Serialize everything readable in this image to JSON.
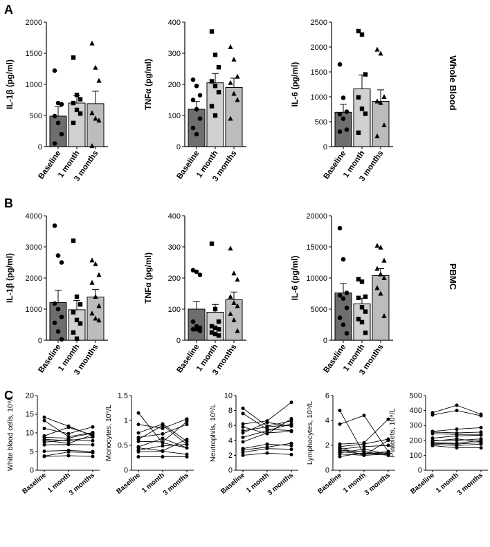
{
  "panels": {
    "a": "A",
    "b": "B",
    "c": "C"
  },
  "side_labels": {
    "whole_blood": "Whole Blood",
    "pbmc": "PBMC"
  },
  "chart_data": [
    {
      "id": "a1",
      "type": "bar",
      "panel": "A",
      "categories": [
        "Baseline",
        "1 month",
        "3 months"
      ],
      "ylabel": "IL-1β (pg/ml)",
      "ylim": [
        0,
        2000
      ],
      "yticks": [
        0,
        500,
        1000,
        1500,
        2000
      ],
      "values": [
        490,
        700,
        690
      ],
      "sem": [
        150,
        120,
        200
      ],
      "points": [
        [
          1220,
          700,
          680,
          490,
          380,
          200,
          50
        ],
        [
          1430,
          830,
          760,
          700,
          590,
          530,
          380
        ],
        [
          1660,
          1270,
          1060,
          540,
          450,
          420,
          10
        ]
      ]
    },
    {
      "id": "a2",
      "type": "bar",
      "panel": "A",
      "categories": [
        "Baseline",
        "1 month",
        "3 months"
      ],
      "ylabel": "TNFα (pg/ml)",
      "ylim": [
        0,
        400
      ],
      "yticks": [
        0,
        100,
        200,
        300,
        400
      ],
      "values": [
        120,
        205,
        190
      ],
      "sem": [
        25,
        30,
        30
      ],
      "points": [
        [
          215,
          195,
          165,
          150,
          120,
          90,
          60,
          40
        ],
        [
          370,
          295,
          255,
          210,
          195,
          175,
          130,
          100
        ],
        [
          320,
          280,
          225,
          205,
          170,
          150,
          90
        ]
      ]
    },
    {
      "id": "a3",
      "type": "bar",
      "panel": "A",
      "categories": [
        "Baseline",
        "1 month",
        "3 months"
      ],
      "ylabel": "IL-6 (pg/ml)",
      "ylim": [
        0,
        2500
      ],
      "yticks": [
        0,
        500,
        1000,
        1500,
        2000,
        2500
      ],
      "values": [
        690,
        1160,
        910
      ],
      "sem": [
        160,
        280,
        230
      ],
      "points": [
        [
          1650,
          980,
          700,
          650,
          560,
          340,
          300
        ],
        [
          2320,
          2250,
          1450,
          990,
          760,
          660,
          280
        ],
        [
          1950,
          1870,
          1000,
          910,
          880,
          430,
          210
        ]
      ]
    },
    {
      "id": "b1",
      "type": "bar",
      "panel": "B",
      "categories": [
        "Baseline",
        "1 month",
        "3 months"
      ],
      "ylabel": "IL-1β (pg/ml)",
      "ylim": [
        0,
        4000
      ],
      "yticks": [
        0,
        1000,
        2000,
        3000,
        4000
      ],
      "values": [
        1210,
        980,
        1390
      ],
      "sem": [
        390,
        300,
        240
      ],
      "points": [
        [
          3680,
          2720,
          2500,
          1180,
          1000,
          750,
          560,
          280,
          30
        ],
        [
          3200,
          1400,
          1150,
          900,
          650,
          540,
          250,
          50
        ],
        [
          2570,
          2450,
          2100,
          1850,
          1400,
          1100,
          860,
          700,
          640
        ]
      ]
    },
    {
      "id": "b2",
      "type": "bar",
      "panel": "B",
      "categories": [
        "Baseline",
        "1 month",
        "3 months"
      ],
      "ylabel": "TNFα (pg/ml)",
      "ylim": [
        0,
        400
      ],
      "yticks": [
        0,
        100,
        200,
        300,
        400
      ],
      "values": [
        100,
        90,
        130
      ],
      "sem": [
        25,
        25,
        25
      ],
      "points": [
        [
          225,
          220,
          210,
          60,
          45,
          40,
          35,
          35,
          30
        ],
        [
          310,
          100,
          60,
          45,
          40,
          35,
          25,
          20,
          15
        ],
        [
          295,
          215,
          195,
          140,
          120,
          110,
          85,
          65,
          30
        ]
      ]
    },
    {
      "id": "b3",
      "type": "bar",
      "panel": "B",
      "categories": [
        "Baseline",
        "1 month",
        "3 months"
      ],
      "ylabel": "IL-6 (pg/ml)",
      "ylim": [
        0,
        20000
      ],
      "yticks": [
        0,
        5000,
        10000,
        15000,
        20000
      ],
      "values": [
        7600,
        5850,
        10400
      ],
      "sem": [
        1500,
        900,
        1100
      ],
      "points": [
        [
          18000,
          13000,
          7600,
          7200,
          6700,
          5200,
          3600,
          2500,
          1100
        ],
        [
          9800,
          9400,
          7000,
          6800,
          5300,
          4600,
          3400,
          2900,
          1200
        ],
        [
          15200,
          14900,
          12800,
          11500,
          10600,
          10000,
          8400,
          7500,
          3900
        ]
      ]
    },
    {
      "id": "c1",
      "type": "line",
      "panel": "C",
      "x": [
        "Baseline",
        "1 month",
        "3 months"
      ],
      "ylabel": "White blood cells, 10⁹/L",
      "ylim": [
        0,
        20
      ],
      "yticks": [
        0,
        5,
        10,
        15,
        20
      ],
      "series": [
        [
          14.2,
          11.8,
          9.2
        ],
        [
          13.3,
          9.0,
          10.1
        ],
        [
          11.2,
          9.8,
          11.6
        ],
        [
          9.2,
          11.5,
          9.4
        ],
        [
          8.8,
          8.6,
          10.0
        ],
        [
          8.3,
          7.9,
          8.9
        ],
        [
          8.0,
          7.2,
          9.5
        ],
        [
          7.5,
          8.2,
          7.9
        ],
        [
          6.8,
          6.9,
          6.8
        ],
        [
          5.1,
          5.3,
          5.0
        ],
        [
          3.8,
          4.9,
          4.7
        ],
        [
          3.7,
          3.9,
          3.7
        ]
      ]
    },
    {
      "id": "c2",
      "type": "line",
      "panel": "C",
      "x": [
        "Baseline",
        "1 month",
        "3 months"
      ],
      "ylabel": "Monocytes, 10⁹/L",
      "ylim": [
        0,
        1.5
      ],
      "yticks": [
        0,
        0.5,
        1.0,
        1.5
      ],
      "series": [
        [
          1.15,
          0.55,
          0.45
        ],
        [
          0.92,
          0.84,
          1.03
        ],
        [
          0.75,
          0.93,
          0.58
        ],
        [
          0.66,
          0.73,
          0.92
        ],
        [
          0.62,
          0.9,
          0.52
        ],
        [
          0.58,
          0.57,
          0.98
        ],
        [
          0.47,
          0.64,
          0.45
        ],
        [
          0.45,
          0.39,
          0.62
        ],
        [
          0.4,
          0.49,
          0.52
        ],
        [
          0.37,
          0.38,
          0.32
        ],
        [
          0.27,
          0.27,
          0.27
        ]
      ]
    },
    {
      "id": "c3",
      "type": "line",
      "panel": "C",
      "x": [
        "Baseline",
        "1 month",
        "3 months"
      ],
      "ylabel": "Neutrophils, 10⁹/L",
      "ylim": [
        0,
        10
      ],
      "yticks": [
        0,
        2,
        4,
        6,
        8,
        10
      ],
      "series": [
        [
          8.3,
          5.9,
          6.6
        ],
        [
          7.6,
          5.5,
          5.3
        ],
        [
          6.2,
          6.6,
          9.1
        ],
        [
          5.8,
          4.9,
          6.9
        ],
        [
          5.3,
          5.8,
          6.1
        ],
        [
          5.0,
          6.4,
          5.9
        ],
        [
          4.4,
          5.3,
          6.2
        ],
        [
          3.8,
          5.0,
          5.2
        ],
        [
          2.9,
          3.5,
          3.3
        ],
        [
          2.7,
          3.1,
          3.6
        ],
        [
          2.4,
          2.9,
          2.8
        ],
        [
          2.0,
          2.3,
          2.1
        ]
      ]
    },
    {
      "id": "c4",
      "type": "line",
      "panel": "C",
      "x": [
        "Baseline",
        "1 month",
        "3 months"
      ],
      "ylabel": "Lymphocytes, 10⁹/L",
      "ylim": [
        0,
        6
      ],
      "yticks": [
        0,
        2,
        4,
        6
      ],
      "series": [
        [
          4.8,
          1.3,
          1.4
        ],
        [
          3.7,
          4.4,
          1.5
        ],
        [
          2.1,
          2.2,
          4.1
        ],
        [
          1.9,
          2.1,
          2.5
        ],
        [
          1.8,
          1.2,
          2.4
        ],
        [
          1.7,
          1.9,
          2.0
        ],
        [
          1.6,
          1.5,
          1.2
        ],
        [
          1.5,
          1.3,
          1.5
        ],
        [
          1.4,
          1.7,
          1.3
        ],
        [
          1.3,
          1.2,
          1.3
        ],
        [
          1.1,
          1.4,
          1.2
        ]
      ]
    },
    {
      "id": "c5",
      "type": "line",
      "panel": "C",
      "x": [
        "Baseline",
        "1 month",
        "3 months"
      ],
      "ylabel": "Platelets, 10⁹/L",
      "ylim": [
        0,
        500
      ],
      "yticks": [
        0,
        100,
        200,
        300,
        400,
        500
      ],
      "series": [
        [
          385,
          435,
          375
        ],
        [
          370,
          400,
          365
        ],
        [
          260,
          275,
          285
        ],
        [
          255,
          250,
          255
        ],
        [
          245,
          240,
          240
        ],
        [
          215,
          230,
          235
        ],
        [
          200,
          200,
          210
        ],
        [
          195,
          210,
          190
        ],
        [
          185,
          180,
          200
        ],
        [
          180,
          175,
          185
        ],
        [
          175,
          165,
          175
        ],
        [
          165,
          150,
          150
        ]
      ]
    }
  ]
}
